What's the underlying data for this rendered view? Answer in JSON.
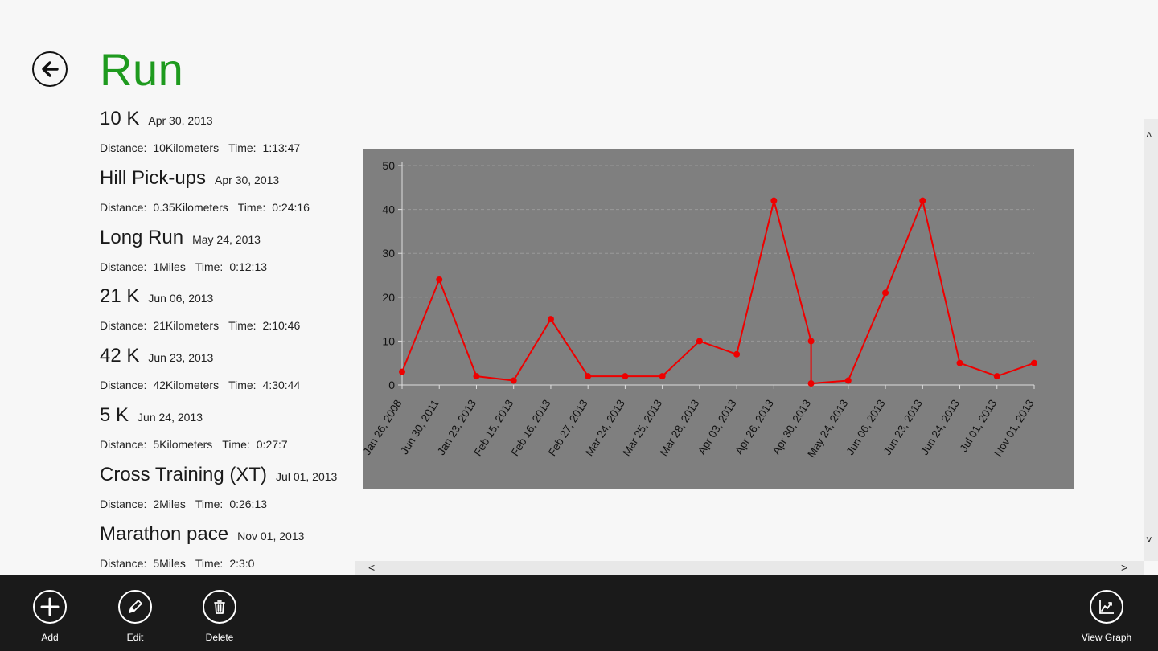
{
  "page": {
    "title": "Run"
  },
  "runs": [
    {
      "name": "10 K",
      "date": "Apr 30, 2013",
      "distance_label": "Distance:",
      "distance": "10Kilometers",
      "time_label": "Time:",
      "time": "1:13:47"
    },
    {
      "name": "Hill Pick-ups",
      "date": "Apr 30, 2013",
      "distance_label": "Distance:",
      "distance": "0.35Kilometers",
      "time_label": "Time:",
      "time": "0:24:16"
    },
    {
      "name": "Long Run",
      "date": "May 24, 2013",
      "distance_label": "Distance:",
      "distance": "1Miles",
      "time_label": "Time:",
      "time": "0:12:13"
    },
    {
      "name": "21 K",
      "date": "Jun 06, 2013",
      "distance_label": "Distance:",
      "distance": "21Kilometers",
      "time_label": "Time:",
      "time": "2:10:46"
    },
    {
      "name": "42 K",
      "date": "Jun 23, 2013",
      "distance_label": "Distance:",
      "distance": "42Kilometers",
      "time_label": "Time:",
      "time": "4:30:44"
    },
    {
      "name": "5 K",
      "date": "Jun 24, 2013",
      "distance_label": "Distance:",
      "distance": "5Kilometers",
      "time_label": "Time:",
      "time": "0:27:7"
    },
    {
      "name": "Cross Training (XT)",
      "date": "Jul 01, 2013",
      "distance_label": "Distance:",
      "distance": "2Miles",
      "time_label": "Time:",
      "time": "0:26:13"
    },
    {
      "name": "Marathon pace",
      "date": "Nov 01, 2013",
      "distance_label": "Distance:",
      "distance": "5Miles",
      "time_label": "Time:",
      "time": "2:3:0"
    }
  ],
  "chart_data": {
    "type": "line",
    "categories": [
      "Jan 26, 2008",
      "Jun 30, 2011",
      "Jan 23, 2013",
      "Feb 15, 2013",
      "Feb 16, 2013",
      "Feb 27, 2013",
      "Mar 24, 2013",
      "Mar 25, 2013",
      "Mar 28, 2013",
      "Apr 03, 2013",
      "Apr 26, 2013",
      "Apr 30, 2013",
      "May 24, 2013",
      "Jun 06, 2013",
      "Jun 23, 2013",
      "Jun 24, 2013",
      "Jul 01, 2013",
      "Nov 01, 2013"
    ],
    "points": [
      {
        "c": 0,
        "y": 3
      },
      {
        "c": 1,
        "y": 24
      },
      {
        "c": 2,
        "y": 2
      },
      {
        "c": 3,
        "y": 1
      },
      {
        "c": 4,
        "y": 15
      },
      {
        "c": 5,
        "y": 2
      },
      {
        "c": 6,
        "y": 2
      },
      {
        "c": 7,
        "y": 2
      },
      {
        "c": 8,
        "y": 10
      },
      {
        "c": 9,
        "y": 7
      },
      {
        "c": 10,
        "y": 42
      },
      {
        "c": 11,
        "y": 10
      },
      {
        "c": 11,
        "y": 0.35
      },
      {
        "c": 12,
        "y": 1
      },
      {
        "c": 13,
        "y": 21
      },
      {
        "c": 14,
        "y": 42
      },
      {
        "c": 15,
        "y": 5
      },
      {
        "c": 16,
        "y": 2
      },
      {
        "c": 17,
        "y": 5
      }
    ],
    "ylim": [
      0,
      50
    ],
    "yticks": [
      0,
      10,
      20,
      30,
      40,
      50
    ],
    "grid": true,
    "colors": {
      "background": "#7f7f7f",
      "line": "#ee0000",
      "grid": "#9a9a9a",
      "axis": "#dddddd",
      "text": "#111111"
    }
  },
  "appbar": {
    "add_label": "Add",
    "edit_label": "Edit",
    "delete_label": "Delete",
    "view_graph_label": "View Graph"
  },
  "scroll": {
    "up": "˄",
    "down": "˅",
    "left": "<",
    "right": ">"
  },
  "icons": {
    "back": "back-arrow-icon",
    "add": "plus-icon",
    "edit": "pencil-icon",
    "delete": "trash-icon",
    "view_graph": "chart-icon"
  }
}
